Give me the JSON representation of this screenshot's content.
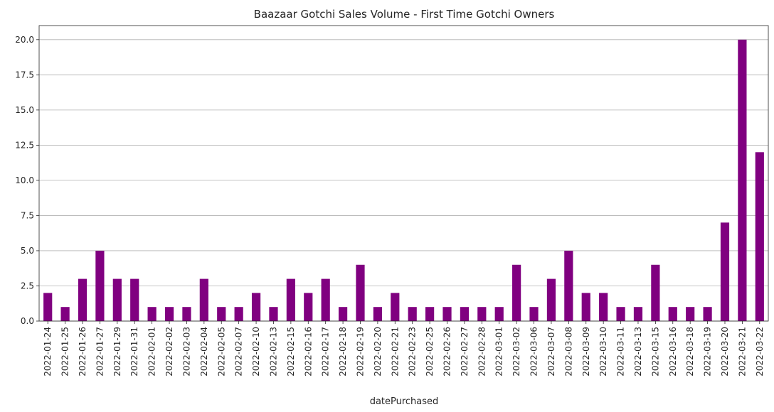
{
  "chart_data": {
    "type": "bar",
    "title": "Baazaar Gotchi Sales Volume - First Time Gotchi Owners",
    "xlabel": "datePurchased",
    "ylabel": "",
    "ylim": [
      0,
      21
    ],
    "yticks": [
      "0.0",
      "2.5",
      "5.0",
      "7.5",
      "10.0",
      "12.5",
      "15.0",
      "17.5",
      "20.0"
    ],
    "ytick_values": [
      0,
      2.5,
      5,
      7.5,
      10,
      12.5,
      15,
      17.5,
      20
    ],
    "grid": "horizontal",
    "bar_color": "#800080",
    "categories": [
      "2022-01-24",
      "2022-01-25",
      "2022-01-26",
      "2022-01-27",
      "2022-01-29",
      "2022-01-31",
      "2022-02-01",
      "2022-02-02",
      "2022-02-03",
      "2022-02-04",
      "2022-02-05",
      "2022-02-07",
      "2022-02-10",
      "2022-02-13",
      "2022-02-15",
      "2022-02-16",
      "2022-02-17",
      "2022-02-18",
      "2022-02-19",
      "2022-02-20",
      "2022-02-21",
      "2022-02-23",
      "2022-02-25",
      "2022-02-26",
      "2022-02-27",
      "2022-02-28",
      "2022-03-01",
      "2022-03-02",
      "2022-03-06",
      "2022-03-07",
      "2022-03-08",
      "2022-03-09",
      "2022-03-10",
      "2022-03-11",
      "2022-03-13",
      "2022-03-15",
      "2022-03-16",
      "2022-03-18",
      "2022-03-19",
      "2022-03-20",
      "2022-03-21",
      "2022-03-22"
    ],
    "values": [
      2,
      1,
      3,
      5,
      3,
      3,
      1,
      1,
      1,
      3,
      1,
      1,
      2,
      1,
      3,
      2,
      3,
      1,
      4,
      1,
      2,
      1,
      1,
      1,
      1,
      1,
      1,
      4,
      1,
      3,
      5,
      2,
      2,
      1,
      1,
      4,
      1,
      1,
      1,
      7,
      20,
      12
    ]
  }
}
